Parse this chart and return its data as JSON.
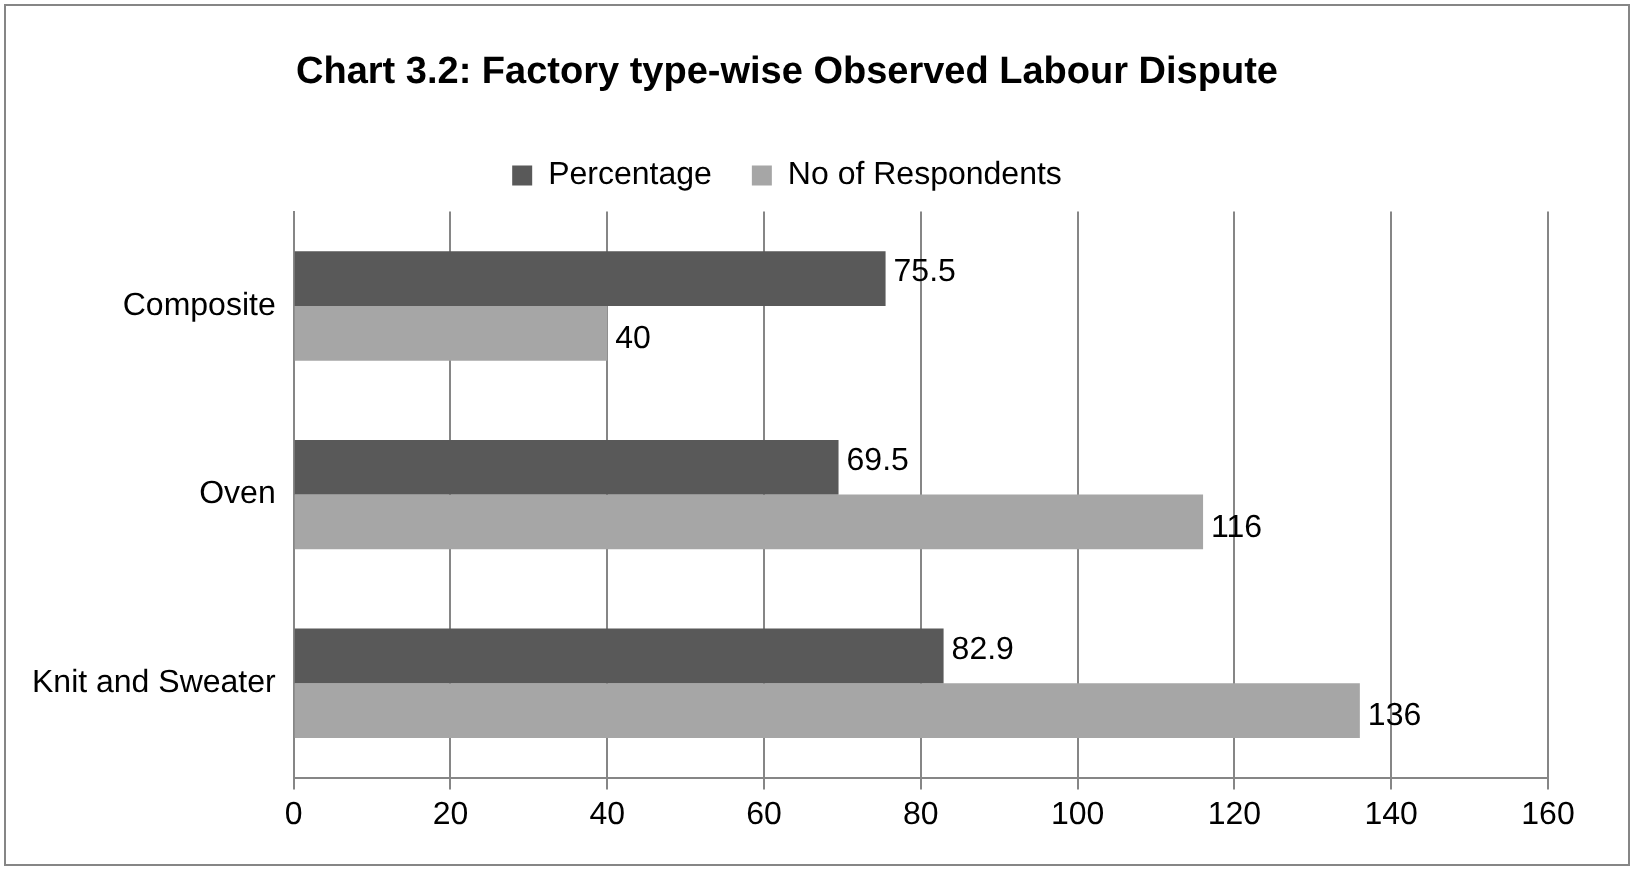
{
  "chart_data": {
    "type": "bar",
    "orientation": "horizontal",
    "title": "Chart 3.2: Factory type-wise Observed Labour Dispute",
    "categories": [
      "Composite",
      "Oven",
      "Knit and Sweater"
    ],
    "series": [
      {
        "name": "Percentage",
        "color": "#595959",
        "values": [
          75.5,
          69.5,
          82.9
        ]
      },
      {
        "name": "No of Respondents",
        "color": "#a6a6a6",
        "values": [
          40,
          116,
          136
        ]
      }
    ],
    "xlim": [
      0,
      160
    ],
    "xticks": [
      0,
      20,
      40,
      60,
      80,
      100,
      120,
      140,
      160
    ],
    "grid": "x",
    "legend": "top",
    "data_labels": true
  }
}
